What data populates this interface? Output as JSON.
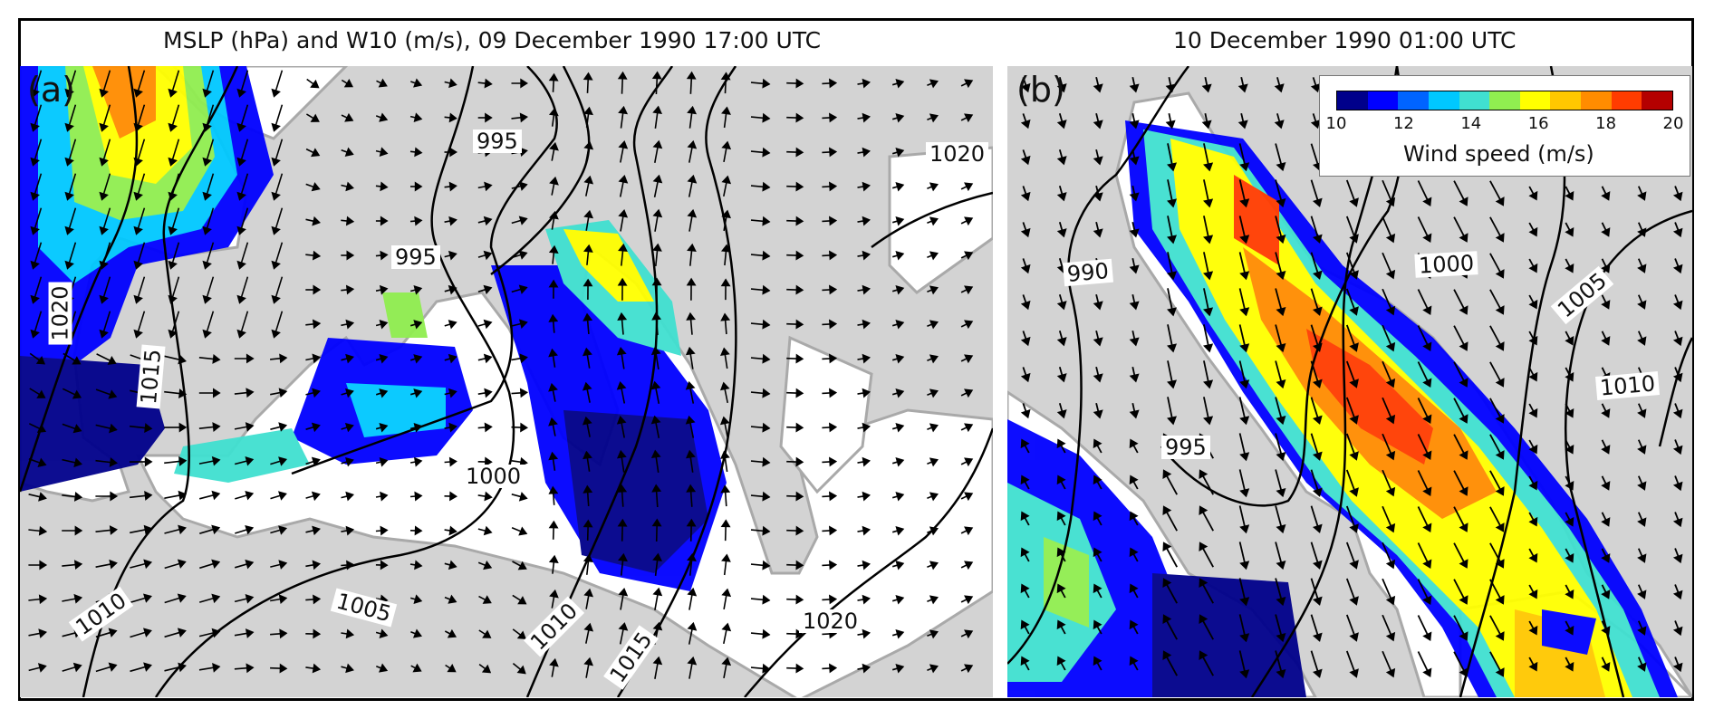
{
  "panel_a": {
    "title": "MSLP (hPa) and W10 (m/s), 09 December 1990 17:00 UTC",
    "letter": "(a)",
    "isobar_labels": [
      "995",
      "995",
      "1000",
      "1005",
      "1010",
      "1010",
      "1015",
      "1015",
      "1020",
      "1020",
      "1020"
    ]
  },
  "panel_b": {
    "title": "10 December 1990 01:00 UTC",
    "letter": "(b)",
    "isobar_labels": [
      "990",
      "995",
      "1000",
      "1005",
      "1010"
    ]
  },
  "colorbar": {
    "title": "Wind speed (m/s)",
    "ticks": [
      "10",
      "12",
      "14",
      "16",
      "18",
      "20"
    ],
    "colors": [
      "#00008b",
      "#0000ff",
      "#0064ff",
      "#00c8ff",
      "#40e0d0",
      "#90ee50",
      "#ffff00",
      "#ffc800",
      "#ff8c00",
      "#ff3c00",
      "#b40000"
    ]
  },
  "colors": {
    "land": "#d3d3d3",
    "sea": "#ffffff",
    "isobar": "#000000",
    "coast": "#a9a9a9"
  }
}
